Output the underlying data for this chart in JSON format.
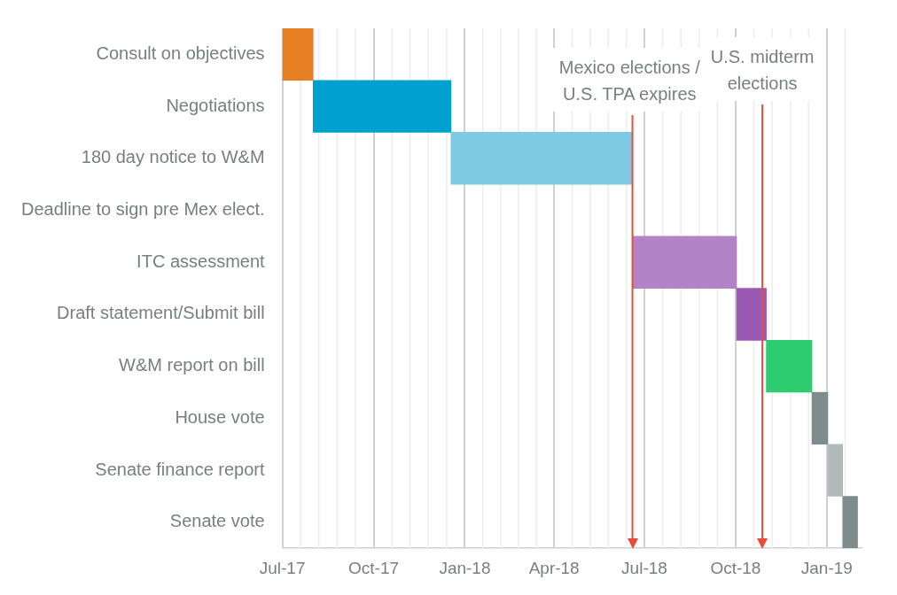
{
  "chart_data": {
    "type": "bar",
    "orientation": "horizontal",
    "categories": [
      "Consult on objectives",
      "Negotiations",
      "180 day notice to W&M",
      "Deadline to sign pre Mex elect.",
      "ITC assessment",
      "Draft statement/Submit bill",
      "W&M report on bill",
      "House vote",
      "Senate finance report",
      "Senate vote"
    ],
    "base": [
      17348,
      17379,
      17518,
      null,
      17701,
      17806,
      17836,
      17882,
      17898,
      17913
    ],
    "values": [
      31,
      139,
      183,
      null,
      105,
      30,
      46,
      16,
      15,
      15
    ],
    "colors": [
      "#e67e22",
      "#00a0cf",
      "#7ecae3",
      "#ffffff",
      "#b283c7",
      "#9b59b6",
      "#2ecc71",
      "#7f8c8d",
      "#b2b9b9",
      "#7f8c8d"
    ],
    "xlim": [
      "2017-07-01",
      "2019-02-05"
    ],
    "xticks": [
      {
        "value": "2017-07-01",
        "label": "Jul-17"
      },
      {
        "value": "2017-10-01",
        "label": "Oct-17"
      },
      {
        "value": "2018-01-01",
        "label": "Jan-18"
      },
      {
        "value": "2018-04-01",
        "label": "Apr-18"
      },
      {
        "value": "2018-07-01",
        "label": "Jul-18"
      },
      {
        "value": "2018-10-01",
        "label": "Oct-18"
      },
      {
        "value": "2019-01-01",
        "label": "Jan-19"
      }
    ],
    "grid": "x",
    "legend": false,
    "ref_lines": [
      {
        "axis": "x",
        "value": "2018-06-19",
        "label": "Mexico elections / U.S. TPA expires",
        "color": "#e74c3c"
      },
      {
        "axis": "x",
        "value": "2018-10-28",
        "label": "U.S. midterm elections",
        "color": "#e74c3c"
      }
    ]
  }
}
